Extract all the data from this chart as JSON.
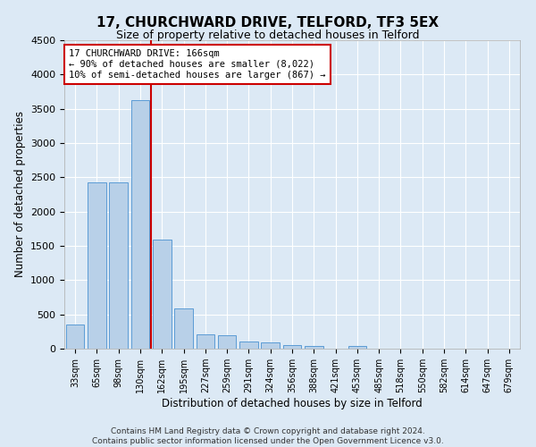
{
  "title1": "17, CHURCHWARD DRIVE, TELFORD, TF3 5EX",
  "title2": "Size of property relative to detached houses in Telford",
  "xlabel": "Distribution of detached houses by size in Telford",
  "ylabel": "Number of detached properties",
  "footer": "Contains HM Land Registry data © Crown copyright and database right 2024.\nContains public sector information licensed under the Open Government Licence v3.0.",
  "categories": [
    "33sqm",
    "65sqm",
    "98sqm",
    "130sqm",
    "162sqm",
    "195sqm",
    "227sqm",
    "259sqm",
    "291sqm",
    "324sqm",
    "356sqm",
    "388sqm",
    "421sqm",
    "453sqm",
    "485sqm",
    "518sqm",
    "550sqm",
    "582sqm",
    "614sqm",
    "647sqm",
    "679sqm"
  ],
  "values": [
    350,
    2420,
    2420,
    3620,
    1590,
    590,
    210,
    200,
    100,
    90,
    50,
    40,
    0,
    45,
    0,
    0,
    0,
    0,
    0,
    0,
    0
  ],
  "bar_color": "#b8d0e8",
  "bar_edge_color": "#5b9bd5",
  "highlight_line_color": "#cc0000",
  "annotation_text": "17 CHURCHWARD DRIVE: 166sqm\n← 90% of detached houses are smaller (8,022)\n10% of semi-detached houses are larger (867) →",
  "annotation_box_color": "#ffffff",
  "annotation_box_edge_color": "#cc0000",
  "ylim": [
    0,
    4500
  ],
  "yticks": [
    0,
    500,
    1000,
    1500,
    2000,
    2500,
    3000,
    3500,
    4000,
    4500
  ],
  "bg_color": "#dce9f5",
  "plot_bg_color": "#dce9f5",
  "grid_color": "#ffffff",
  "title1_fontsize": 11,
  "title2_fontsize": 9,
  "xlabel_fontsize": 8.5,
  "ylabel_fontsize": 8.5,
  "footer_fontsize": 6.5
}
